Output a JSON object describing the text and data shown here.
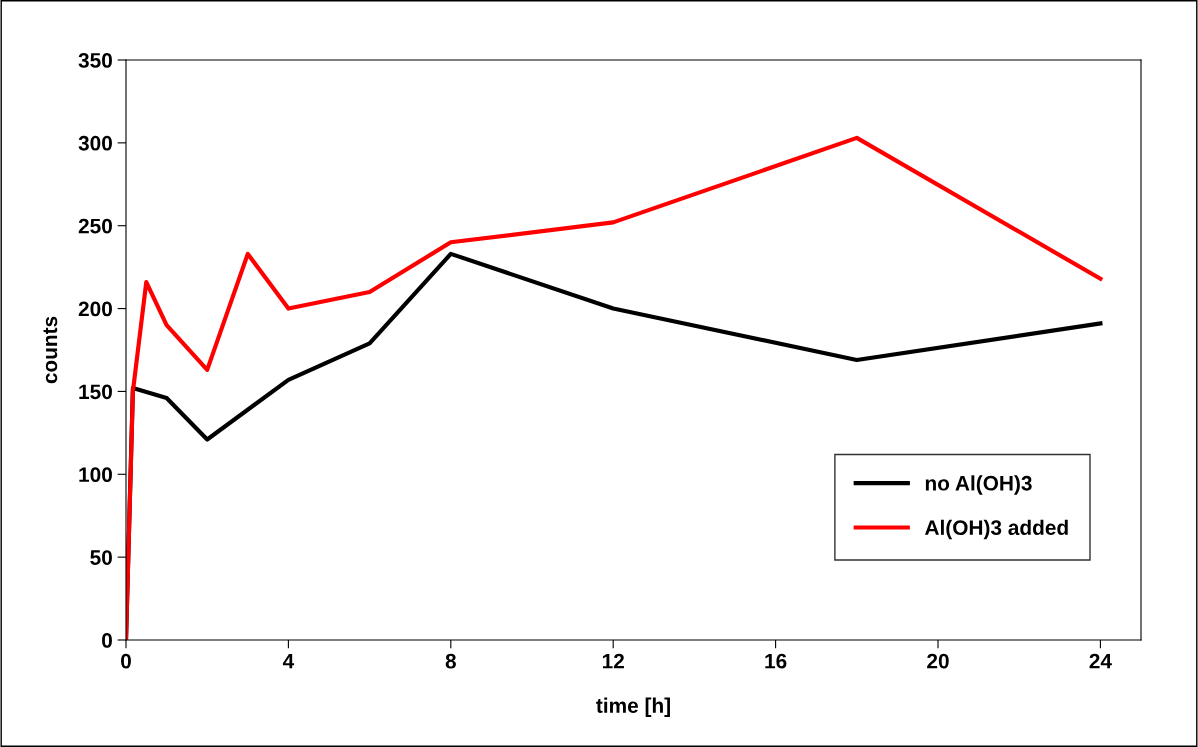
{
  "chart_data": {
    "type": "line",
    "xlabel": "time [h]",
    "ylabel": "counts",
    "xlim": [
      0,
      25
    ],
    "xticks": [
      0,
      4,
      8,
      12,
      16,
      20,
      24
    ],
    "ylim": [
      0,
      350
    ],
    "yticks": [
      0,
      50,
      100,
      150,
      200,
      250,
      300,
      350
    ],
    "grid": false,
    "legend": "bottom right",
    "marker": "none",
    "line_style": "solid",
    "series": [
      {
        "name": "no Al(OH)3",
        "color": "#000000",
        "x": [
          0,
          0.17,
          1,
          2,
          4,
          6,
          8,
          12,
          18,
          24
        ],
        "values": [
          0,
          152,
          146,
          121,
          157,
          179,
          233,
          200,
          169,
          191
        ]
      },
      {
        "name": "Al(OH)3 added",
        "color": "#ff0000",
        "x": [
          0,
          0.17,
          0.5,
          1,
          2,
          3,
          4,
          6,
          8,
          12,
          18,
          24
        ],
        "values": [
          0,
          150,
          216,
          190,
          163,
          233,
          200,
          210,
          240,
          252,
          303,
          218
        ]
      }
    ]
  }
}
